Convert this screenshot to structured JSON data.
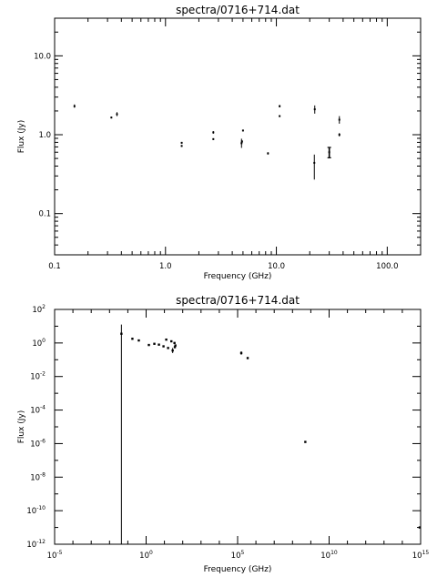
{
  "chart_data": [
    {
      "type": "scatter",
      "title": "spectra/0716+714.dat",
      "xlabel": "Frequency (GHz)",
      "ylabel": "Flux (Jy)",
      "xscale": "log",
      "yscale": "log",
      "xlim": [
        0.1,
        200
      ],
      "ylim": [
        0.03,
        30
      ],
      "xticks": [
        {
          "v": 0.1,
          "label": "0.1"
        },
        {
          "v": 1,
          "label": "1.0"
        },
        {
          "v": 10,
          "label": "10.0"
        },
        {
          "v": 100,
          "label": "100.0"
        }
      ],
      "yticks": [
        {
          "v": 0.1,
          "label": "0.1"
        },
        {
          "v": 1,
          "label": "1.0"
        },
        {
          "v": 10,
          "label": "10.0"
        }
      ],
      "grid": false,
      "points": [
        {
          "x": 0.151,
          "y": 2.3,
          "lo": 2.2,
          "hi": 2.42
        },
        {
          "x": 0.325,
          "y": 1.65,
          "lo": 1.61,
          "hi": 1.69
        },
        {
          "x": 0.365,
          "y": 1.82,
          "lo": 1.72,
          "hi": 1.93
        },
        {
          "x": 1.4,
          "y": 0.72,
          "lo": 0.7,
          "hi": 0.74
        },
        {
          "x": 1.4,
          "y": 0.79,
          "lo": 0.77,
          "hi": 0.81
        },
        {
          "x": 2.7,
          "y": 0.88,
          "lo": 0.86,
          "hi": 0.9
        },
        {
          "x": 2.7,
          "y": 1.07,
          "lo": 1.03,
          "hi": 1.11
        },
        {
          "x": 4.85,
          "y": 0.78,
          "lo": 0.68,
          "hi": 0.89
        },
        {
          "x": 4.9,
          "y": 0.82,
          "lo": 0.79,
          "hi": 0.85
        },
        {
          "x": 5.0,
          "y": 1.13,
          "lo": 1.1,
          "hi": 1.16
        },
        {
          "x": 8.4,
          "y": 0.58,
          "lo": 0.56,
          "hi": 0.6
        },
        {
          "x": 10.7,
          "y": 1.72,
          "lo": 1.68,
          "hi": 1.76
        },
        {
          "x": 10.7,
          "y": 2.3,
          "lo": 2.22,
          "hi": 2.38
        },
        {
          "x": 22,
          "y": 0.44,
          "lo": 0.27,
          "hi": 0.56
        },
        {
          "x": 22.2,
          "y": 2.1,
          "lo": 1.85,
          "hi": 2.35
        },
        {
          "x": 30,
          "y": 0.6,
          "lo": 0.51,
          "hi": 0.69
        },
        {
          "x": 37,
          "y": 1.0,
          "lo": 0.95,
          "hi": 1.05
        },
        {
          "x": 37,
          "y": 1.55,
          "lo": 1.38,
          "hi": 1.72
        }
      ]
    },
    {
      "type": "scatter",
      "title": "spectra/0716+714.dat",
      "xlabel": "Frequency (GHz)",
      "ylabel": "Flux (Jy)",
      "xscale": "log",
      "yscale": "log",
      "xlim_log10": [
        -5,
        15
      ],
      "ylim_log10": [
        -12,
        2
      ],
      "xticks": [
        {
          "exp": -5,
          "base": "10",
          "sup": "-5"
        },
        {
          "exp": 0,
          "base": "10",
          "sup": "0"
        },
        {
          "exp": 5,
          "base": "10",
          "sup": "5"
        },
        {
          "exp": 10,
          "base": "10",
          "sup": "10"
        },
        {
          "exp": 15,
          "base": "10",
          "sup": "15"
        }
      ],
      "yticks": [
        {
          "exp": 2,
          "base": "10",
          "sup": "2"
        },
        {
          "exp": 0,
          "base": "10",
          "sup": "0"
        },
        {
          "exp": -2,
          "base": "10",
          "sup": "-2"
        },
        {
          "exp": -4,
          "base": "10",
          "sup": "-4"
        },
        {
          "exp": -6,
          "base": "10",
          "sup": "-6"
        },
        {
          "exp": -8,
          "base": "10",
          "sup": "-8"
        },
        {
          "exp": -10,
          "base": "10",
          "sup": "-10"
        },
        {
          "exp": -12,
          "base": "10",
          "sup": "-12"
        }
      ],
      "grid": false,
      "points_log10": [
        {
          "x": -1.35,
          "y": 0.55,
          "lo": -12,
          "hi": 1.1
        },
        {
          "x": -0.75,
          "y": 0.25,
          "lo": 0.2,
          "hi": 0.3
        },
        {
          "x": -0.4,
          "y": 0.15,
          "lo": 0.1,
          "hi": 0.2
        },
        {
          "x": 0.15,
          "y": -0.12,
          "lo": -0.15,
          "hi": -0.09
        },
        {
          "x": 0.45,
          "y": -0.05,
          "lo": -0.08,
          "hi": -0.02
        },
        {
          "x": 0.7,
          "y": -0.1,
          "lo": -0.13,
          "hi": -0.07
        },
        {
          "x": 0.95,
          "y": -0.2,
          "lo": -0.23,
          "hi": -0.17
        },
        {
          "x": 1.1,
          "y": 0.2,
          "lo": 0.17,
          "hi": 0.23
        },
        {
          "x": 1.2,
          "y": -0.3,
          "lo": -0.33,
          "hi": -0.27
        },
        {
          "x": 1.38,
          "y": 0.1,
          "lo": 0.05,
          "hi": 0.15
        },
        {
          "x": 1.45,
          "y": -0.45,
          "lo": -0.6,
          "hi": -0.3
        },
        {
          "x": 1.55,
          "y": 0.0,
          "lo": -0.05,
          "hi": 0.05
        },
        {
          "x": 1.57,
          "y": -0.25,
          "lo": -0.3,
          "hi": -0.2
        },
        {
          "x": 1.6,
          "y": -0.15,
          "lo": -0.2,
          "hi": -0.1
        },
        {
          "x": 5.2,
          "y": -0.6,
          "lo": -0.7,
          "hi": -0.5
        },
        {
          "x": 5.55,
          "y": -0.9,
          "lo": -0.95,
          "hi": -0.85
        },
        {
          "x": 8.7,
          "y": -5.9,
          "lo": -5.95,
          "hi": -5.85
        },
        {
          "x": 14.95,
          "y": -11.0,
          "lo": -11.05,
          "hi": -10.95
        }
      ]
    }
  ]
}
